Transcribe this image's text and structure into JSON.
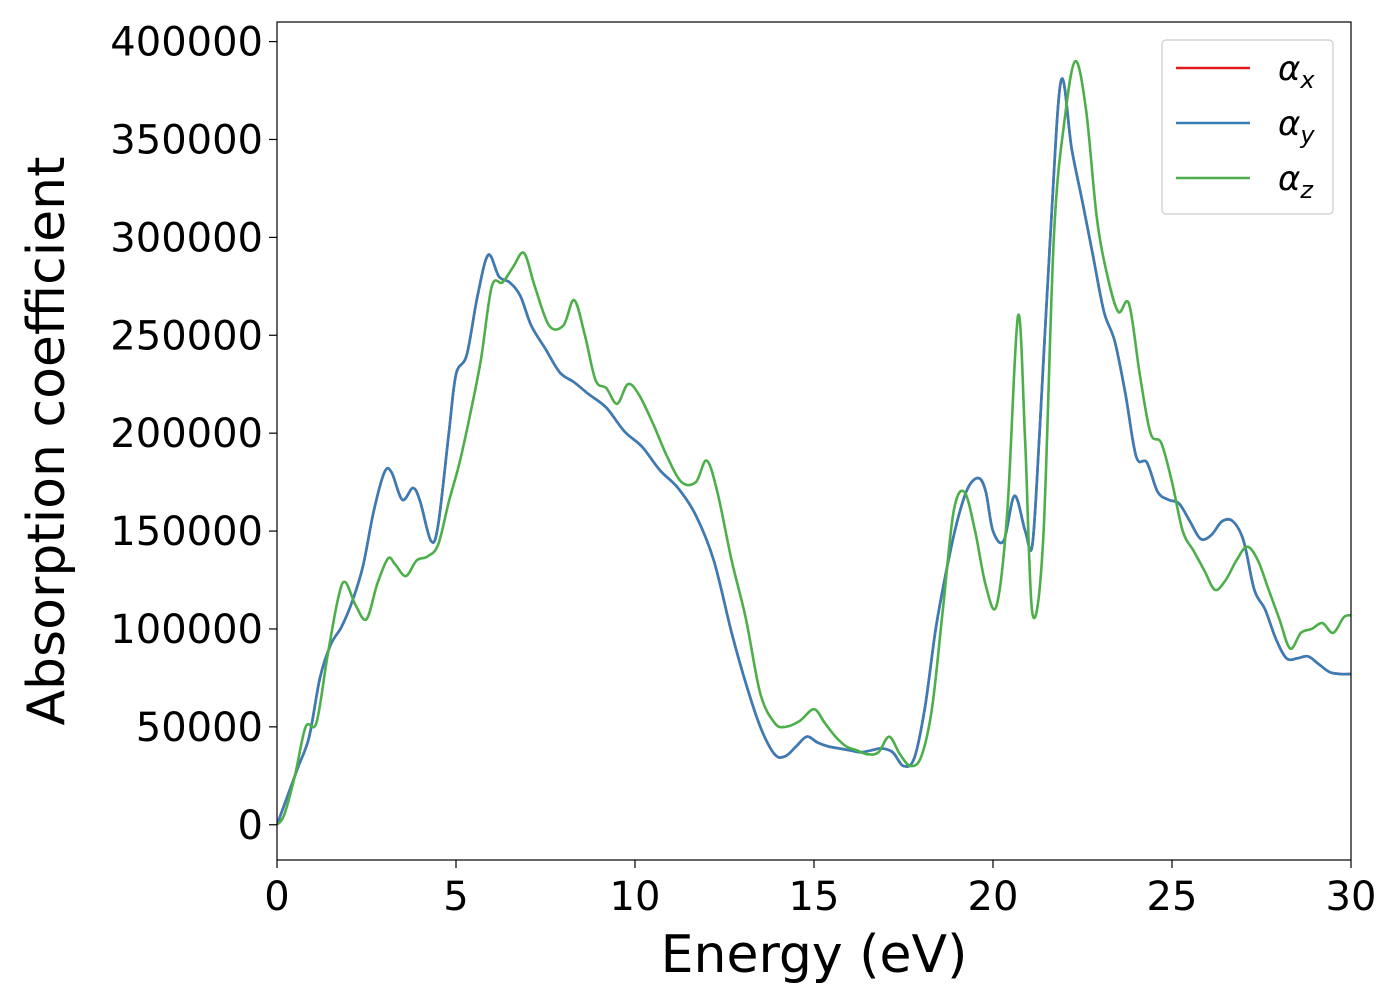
{
  "chart_data": {
    "type": "line",
    "title": "",
    "xlabel": "Energy (eV)",
    "ylabel": "Absorption coefficient",
    "xlim": [
      0,
      30
    ],
    "ylim": [
      -18000,
      410000
    ],
    "xticks": [
      0,
      5,
      10,
      15,
      20,
      25,
      30
    ],
    "yticks": [
      0,
      50000,
      100000,
      150000,
      200000,
      250000,
      300000,
      350000,
      400000
    ],
    "grid": false,
    "legend_position": "top-right",
    "legend": [
      {
        "base": "α",
        "sub": "x",
        "color": "#e41a1c"
      },
      {
        "base": "α",
        "sub": "y",
        "color": "#377eb8"
      },
      {
        "base": "α",
        "sub": "z",
        "color": "#4daf4a"
      }
    ],
    "series": [
      {
        "name": "α_x",
        "color": "#e41a1c",
        "x": [
          0,
          0.3,
          0.6,
          0.9,
          1.2,
          1.5,
          1.8,
          2.1,
          2.4,
          2.7,
          3.0,
          3.2,
          3.5,
          3.8,
          4.0,
          4.3,
          4.5,
          4.8,
          5.0,
          5.3,
          5.6,
          5.9,
          6.2,
          6.5,
          6.8,
          7.1,
          7.5,
          7.9,
          8.3,
          8.7,
          9.2,
          9.7,
          10.2,
          10.7,
          11.2,
          11.7,
          12.2,
          12.7,
          13.1,
          13.5,
          13.9,
          14.2,
          14.5,
          14.8,
          15.1,
          15.4,
          15.7,
          16.0,
          16.3,
          16.6,
          16.9,
          17.2,
          17.5,
          17.8,
          18.1,
          18.4,
          18.7,
          19.0,
          19.3,
          19.6,
          19.8,
          20.0,
          20.3,
          20.6,
          20.9,
          21.1,
          21.3,
          21.6,
          21.9,
          22.2,
          22.5,
          22.8,
          23.1,
          23.4,
          23.7,
          24.0,
          24.3,
          24.6,
          24.9,
          25.2,
          25.5,
          25.8,
          26.1,
          26.4,
          26.7,
          27.0,
          27.3,
          27.6,
          27.9,
          28.2,
          28.5,
          28.8,
          29.1,
          29.4,
          29.7,
          30.0
        ],
        "y": [
          0,
          15000,
          30000,
          45000,
          75000,
          92000,
          101000,
          114000,
          132000,
          160000,
          180000,
          180000,
          166000,
          172000,
          165000,
          145000,
          153000,
          200000,
          230000,
          240000,
          270000,
          291000,
          280000,
          277000,
          270000,
          255000,
          243000,
          231000,
          226000,
          220000,
          213000,
          201000,
          193000,
          181000,
          172000,
          158000,
          135000,
          98000,
          72000,
          50000,
          36000,
          35000,
          40000,
          45000,
          42000,
          40000,
          39000,
          38000,
          37000,
          38000,
          39000,
          37000,
          30000,
          34000,
          60000,
          100000,
          130000,
          155000,
          172000,
          177000,
          170000,
          150000,
          145000,
          168000,
          150000,
          143000,
          200000,
          300000,
          380000,
          345000,
          318000,
          290000,
          262000,
          247000,
          220000,
          188000,
          185000,
          170000,
          166000,
          164000,
          155000,
          146000,
          148000,
          155000,
          155000,
          145000,
          120000,
          110000,
          95000,
          85000,
          85000,
          86000,
          82000,
          78000,
          77000,
          77000
        ],
        "x_note": ""
      },
      {
        "name": "α_y",
        "color": "#377eb8",
        "x": [
          0,
          0.3,
          0.6,
          0.9,
          1.2,
          1.5,
          1.8,
          2.1,
          2.4,
          2.7,
          3.0,
          3.2,
          3.5,
          3.8,
          4.0,
          4.3,
          4.5,
          4.8,
          5.0,
          5.3,
          5.6,
          5.9,
          6.2,
          6.5,
          6.8,
          7.1,
          7.5,
          7.9,
          8.3,
          8.7,
          9.2,
          9.7,
          10.2,
          10.7,
          11.2,
          11.7,
          12.2,
          12.7,
          13.1,
          13.5,
          13.9,
          14.2,
          14.5,
          14.8,
          15.1,
          15.4,
          15.7,
          16.0,
          16.3,
          16.6,
          16.9,
          17.2,
          17.5,
          17.8,
          18.1,
          18.4,
          18.7,
          19.0,
          19.3,
          19.6,
          19.8,
          20.0,
          20.3,
          20.6,
          20.9,
          21.1,
          21.3,
          21.6,
          21.9,
          22.2,
          22.5,
          22.8,
          23.1,
          23.4,
          23.7,
          24.0,
          24.3,
          24.6,
          24.9,
          25.2,
          25.5,
          25.8,
          26.1,
          26.4,
          26.7,
          27.0,
          27.3,
          27.6,
          27.9,
          28.2,
          28.5,
          28.8,
          29.1,
          29.4,
          29.7,
          30.0
        ],
        "y": [
          0,
          15000,
          30000,
          45000,
          75000,
          92000,
          101000,
          114000,
          132000,
          160000,
          180000,
          180000,
          166000,
          172000,
          165000,
          145000,
          153000,
          200000,
          230000,
          240000,
          270000,
          291000,
          280000,
          277000,
          270000,
          255000,
          243000,
          231000,
          226000,
          220000,
          213000,
          201000,
          193000,
          181000,
          172000,
          158000,
          135000,
          98000,
          72000,
          50000,
          36000,
          35000,
          40000,
          45000,
          42000,
          40000,
          39000,
          38000,
          37000,
          38000,
          39000,
          37000,
          30000,
          34000,
          60000,
          100000,
          130000,
          155000,
          172000,
          177000,
          170000,
          150000,
          145000,
          168000,
          150000,
          143000,
          200000,
          300000,
          380000,
          345000,
          318000,
          290000,
          262000,
          247000,
          220000,
          188000,
          185000,
          170000,
          166000,
          164000,
          155000,
          146000,
          148000,
          155000,
          155000,
          145000,
          120000,
          110000,
          95000,
          85000,
          85000,
          86000,
          82000,
          78000,
          77000,
          77000
        ],
        "x_note": ""
      },
      {
        "name": "α_z",
        "color": "#4daf4a",
        "x": [
          0,
          0.2,
          0.5,
          0.8,
          1.1,
          1.4,
          1.7,
          1.9,
          2.2,
          2.5,
          2.8,
          3.1,
          3.3,
          3.6,
          3.9,
          4.2,
          4.5,
          4.8,
          5.1,
          5.4,
          5.7,
          6.0,
          6.3,
          6.6,
          6.9,
          7.2,
          7.6,
          8.0,
          8.3,
          8.6,
          8.9,
          9.2,
          9.5,
          9.8,
          10.1,
          10.5,
          10.9,
          11.3,
          11.7,
          12.0,
          12.3,
          12.7,
          13.1,
          13.5,
          13.9,
          14.2,
          14.6,
          15.0,
          15.3,
          15.6,
          15.9,
          16.2,
          16.5,
          16.8,
          17.1,
          17.4,
          17.7,
          18.0,
          18.3,
          18.6,
          18.9,
          19.2,
          19.5,
          19.8,
          20.1,
          20.4,
          20.7,
          20.9,
          21.1,
          21.4,
          21.7,
          22.0,
          22.3,
          22.6,
          22.9,
          23.2,
          23.5,
          23.8,
          24.1,
          24.4,
          24.7,
          25.0,
          25.3,
          25.6,
          25.9,
          26.2,
          26.5,
          26.8,
          27.1,
          27.4,
          27.7,
          28.0,
          28.3,
          28.6,
          28.9,
          29.2,
          29.5,
          29.8,
          30.0
        ],
        "y": [
          0,
          5000,
          25000,
          50000,
          52000,
          85000,
          115000,
          124000,
          112000,
          105000,
          123000,
          136000,
          133000,
          127000,
          135000,
          137000,
          143000,
          165000,
          185000,
          210000,
          238000,
          275000,
          277000,
          285000,
          292000,
          275000,
          255000,
          255000,
          268000,
          250000,
          227000,
          223000,
          215000,
          225000,
          220000,
          205000,
          188000,
          175000,
          175000,
          186000,
          170000,
          135000,
          105000,
          67000,
          52000,
          50000,
          53000,
          59000,
          52000,
          45000,
          40000,
          38000,
          36000,
          37000,
          45000,
          36000,
          30000,
          35000,
          60000,
          110000,
          160000,
          170000,
          150000,
          122000,
          112000,
          160000,
          260000,
          195000,
          108000,
          145000,
          300000,
          360000,
          390000,
          365000,
          310000,
          280000,
          262000,
          266000,
          230000,
          200000,
          195000,
          175000,
          150000,
          140000,
          130000,
          120000,
          125000,
          135000,
          142000,
          135000,
          120000,
          105000,
          90000,
          98000,
          100000,
          103000,
          98000,
          106000,
          107000
        ],
        "x_note": ""
      }
    ]
  }
}
